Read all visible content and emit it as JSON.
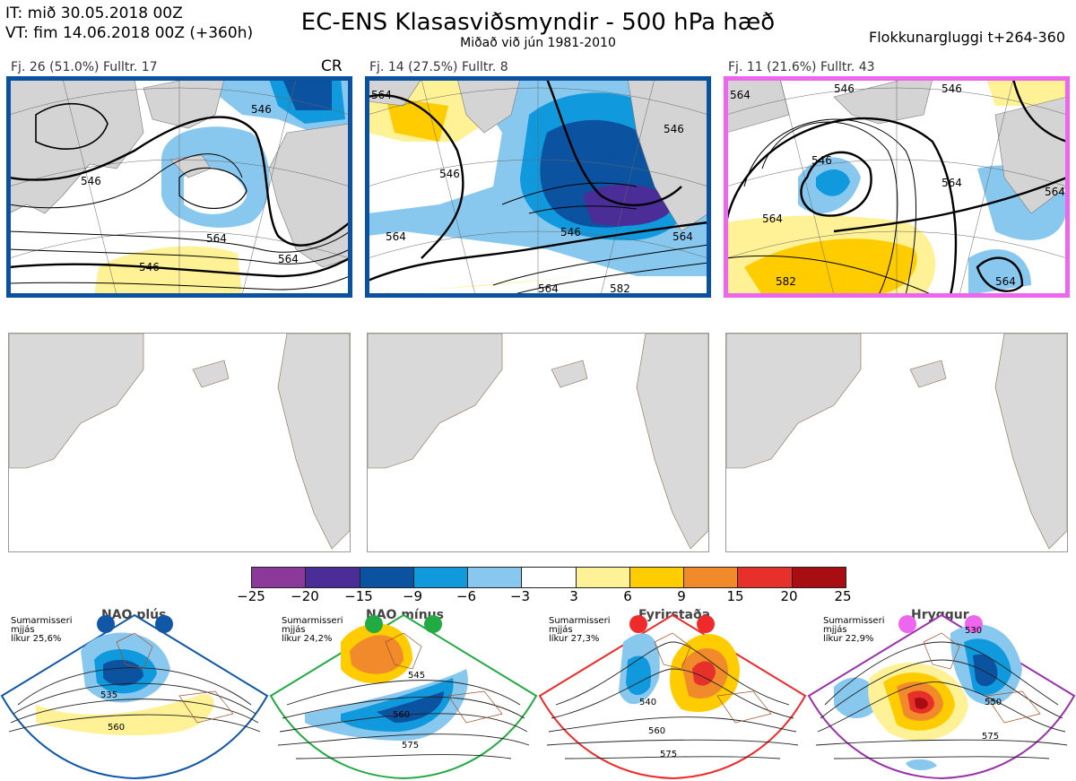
{
  "header": {
    "it_line": "IT: mið 30.05.2018 00Z",
    "vt_line": "VT: fim 14.06.2018 00Z  (+360h)",
    "title": "EC-ENS Klasasviðsmyndir - 500 hPa hæð",
    "subtitle": "Miðað við jún 1981-2010",
    "window": "Flokkunargluggi t+264-360"
  },
  "clusters": [
    {
      "label": "Fj. 26 (51.0%)   Fulltr. 17",
      "frame_color": "#0a52a0",
      "extra": "CR",
      "contour_labels": [
        "546",
        "546",
        "564",
        "546",
        "564"
      ]
    },
    {
      "label": "Fj. 14 (27.5%)   Fulltr. 8",
      "frame_color": "#0a52a0",
      "contour_labels": [
        "564",
        "546",
        "564",
        "546",
        "564",
        "546",
        "564",
        "582"
      ]
    },
    {
      "label": "Fj. 11 (21.6%)   Fulltr. 43",
      "frame_color": "#ee66ee",
      "contour_labels": [
        "564",
        "546",
        "546",
        "564",
        "564",
        "582",
        "564",
        "546",
        "564"
      ]
    }
  ],
  "colorbar": {
    "colors": [
      "#8b3a9b",
      "#4a2d96",
      "#0b52a0",
      "#1199dd",
      "#88c8ee",
      "#ffffff",
      "#fff196",
      "#ffcc00",
      "#f08a2a",
      "#e8302a",
      "#a80d12"
    ],
    "ticks": [
      "−25",
      "−20",
      "−15",
      "−9",
      "−6",
      "−3",
      "3",
      "6",
      "9",
      "15",
      "20",
      "25"
    ]
  },
  "regimes": [
    {
      "name": "NAO plús",
      "season": "Sumarmisseri",
      "smoothed": "mjjás",
      "likur": "líkur 25,6%",
      "color": "#1157a8",
      "contours": [
        "535",
        "560"
      ]
    },
    {
      "name": "NAO mínus",
      "season": "Sumarmisseri",
      "smoothed": "mjjás",
      "likur": "líkur 24,2%",
      "color": "#22aa44",
      "contours": [
        "545",
        "560",
        "575"
      ]
    },
    {
      "name": "Fyrirstaða",
      "season": "Sumarmisseri",
      "smoothed": "mjjás",
      "likur": "líkur 27,3%",
      "color": "#ee2a2a",
      "contours": [
        "540",
        "560",
        "575"
      ]
    },
    {
      "name": "Hryggur",
      "season": "Sumarmisseri",
      "smoothed": "mjjás",
      "likur": "líkur 22,9%",
      "color": "#ee66ee",
      "contours": [
        "530",
        "550",
        "575"
      ]
    }
  ]
}
